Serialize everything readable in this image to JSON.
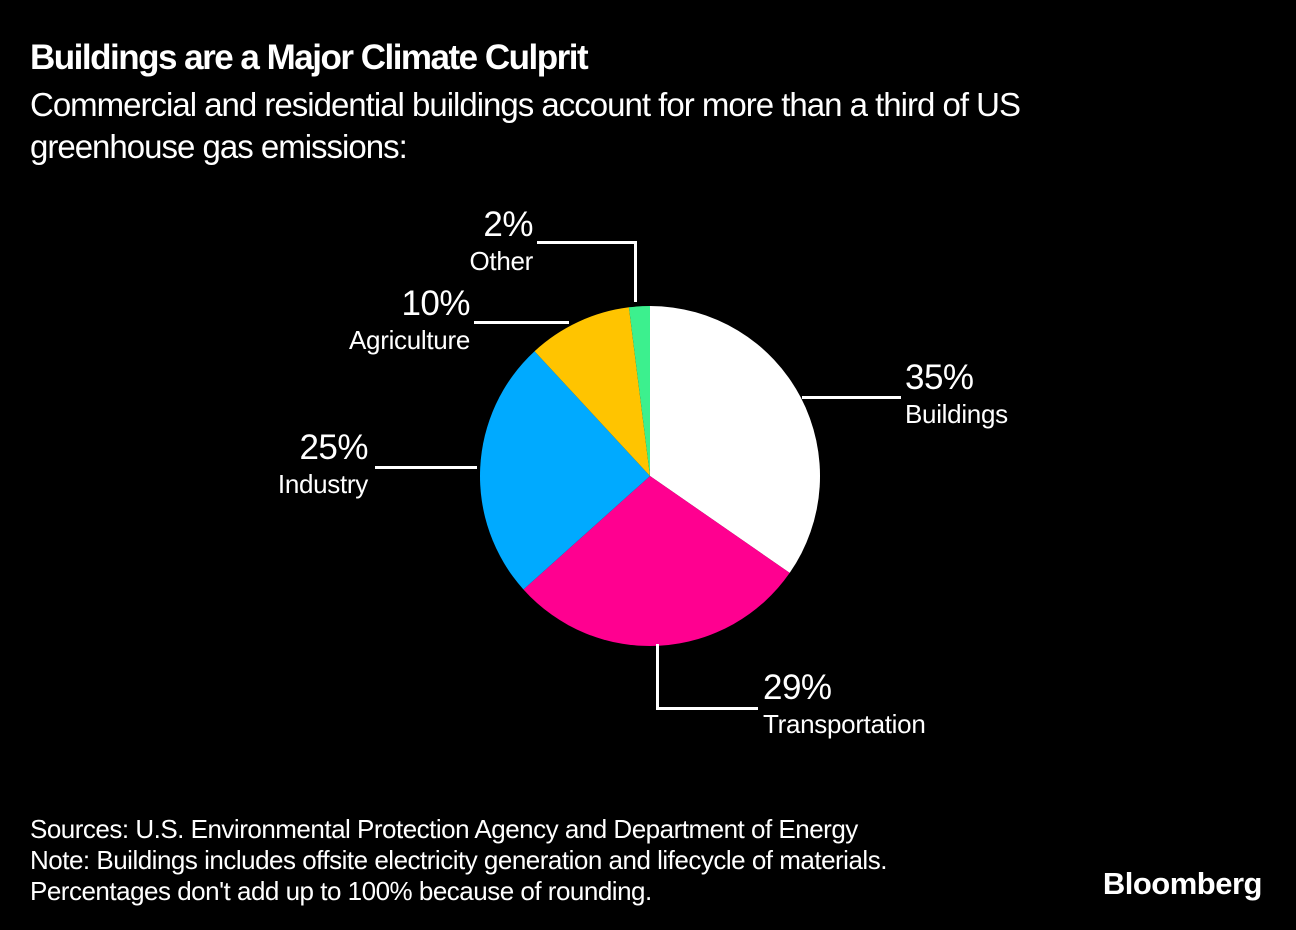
{
  "colors": {
    "background": "#000000",
    "text": "#ffffff",
    "leader_line": "#ffffff"
  },
  "header": {
    "title": "Buildings are a Major Climate Culprit",
    "subtitle_lines": [
      "Commercial and residential buildings account for more than a third of US",
      "greenhouse gas emissions:"
    ]
  },
  "chart_data": {
    "type": "pie",
    "title": "Buildings are a Major Climate Culprit",
    "subtitle": "Commercial and residential buildings account for more than a third of US greenhouse gas emissions:",
    "value_suffix": "%",
    "start_angle_deg": 0,
    "direction": "clockwise",
    "slices": [
      {
        "label": "Buildings",
        "value": 35,
        "pct_label": "35%",
        "color": "#ffffff"
      },
      {
        "label": "Transportation",
        "value": 29,
        "pct_label": "29%",
        "color": "#ff0090"
      },
      {
        "label": "Industry",
        "value": 25,
        "pct_label": "25%",
        "color": "#00aaff"
      },
      {
        "label": "Agriculture",
        "value": 10,
        "pct_label": "10%",
        "color": "#ffc400"
      },
      {
        "label": "Other",
        "value": 2,
        "pct_label": "2%",
        "color": "#3cf08e"
      }
    ]
  },
  "footer": {
    "lines": [
      "Sources: U.S. Environmental Protection Agency and Department of Energy",
      "Note: Buildings includes offsite electricity generation and lifecycle of materials.",
      "Percentages don't add up to 100% because of rounding."
    ],
    "logo": "Bloomberg"
  }
}
